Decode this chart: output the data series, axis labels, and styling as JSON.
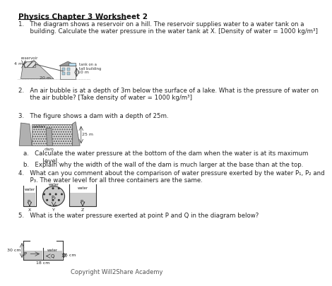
{
  "title": "Physics Chapter 3 Worksheet 2",
  "bg_color": "#ffffff",
  "text_color": "#222222",
  "q1_text": "1.   The diagram shows a reservoir on a hill. The reservoir supplies water to a water tank on a\n      building. Calculate the water pressure in the water tank at X. [Density of water = 1000 kg/m³]",
  "q2_text": "2.   An air bubble is at a depth of 3m below the surface of a lake. What is the pressure of water on\n      the air bubble? [Take density of water = 1000 kg/m³]",
  "q3_text": "3.   The figure shows a dam with a depth of 25m.",
  "q3a_text": "a.   Calculate the water pressure at the bottom of the dam when the water is at its maximum\n          level.",
  "q3b_text": "b.   Explain why the width of the wall of the dam is much larger at the base than at the top.",
  "q4_text": "4.   What can you comment about the comparison of water pressure exerted by the water P₁, P₂ and\n      P₃. The water level for all three containers are the same.",
  "q5_text": "5.   What is the water pressure exerted at point P and Q in the diagram below?",
  "footer": "Copyright Will2Share Academy"
}
